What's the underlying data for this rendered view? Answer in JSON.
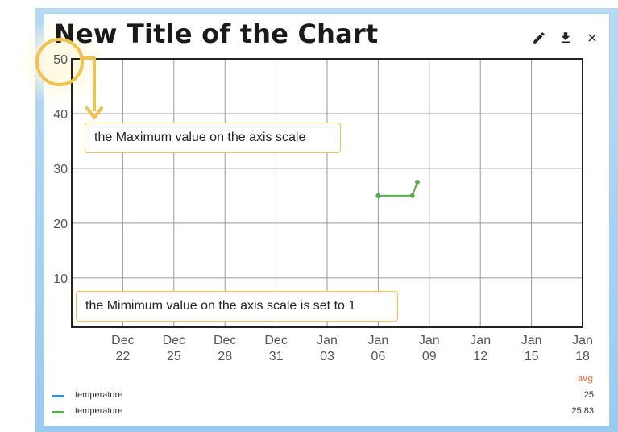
{
  "header": {
    "title": "New Title of the Chart",
    "actions": [
      {
        "icon": "pencil-icon",
        "name": "edit-button"
      },
      {
        "icon": "download-icon",
        "name": "download-button"
      },
      {
        "icon": "close-icon",
        "name": "close-button"
      }
    ]
  },
  "annotations": {
    "max_note": "the Maximum value on the axis scale",
    "min_note": "the Mimimum value on the axis scale is set to 1",
    "accent_color": "#f2c14e"
  },
  "legend": {
    "avg_header": "avg",
    "items": [
      {
        "label": "temperature",
        "color": "#2f8fe0",
        "avg": "25"
      },
      {
        "label": "temperature",
        "color": "#5aab4f",
        "avg": "25.83"
      }
    ]
  },
  "chart_data": {
    "type": "line",
    "x_ticks": [
      {
        "month": "Dec",
        "day": "22",
        "date": "2023-12-22"
      },
      {
        "month": "Dec",
        "day": "25",
        "date": "2023-12-25"
      },
      {
        "month": "Dec",
        "day": "28",
        "date": "2023-12-28"
      },
      {
        "month": "Dec",
        "day": "31",
        "date": "2023-12-31"
      },
      {
        "month": "Jan",
        "day": "03",
        "date": "2024-01-03"
      },
      {
        "month": "Jan",
        "day": "06",
        "date": "2024-01-06"
      },
      {
        "month": "Jan",
        "day": "09",
        "date": "2024-01-09"
      },
      {
        "month": "Jan",
        "day": "12",
        "date": "2024-01-12"
      },
      {
        "month": "Jan",
        "day": "15",
        "date": "2024-01-15"
      },
      {
        "month": "Jan",
        "day": "18",
        "date": "2024-01-18"
      }
    ],
    "xlim": [
      "2023-12-19",
      "2024-01-18"
    ],
    "ylim": [
      1,
      50
    ],
    "y_ticks": [
      10,
      20,
      30,
      40,
      50
    ],
    "grid": true,
    "legend_position": "bottom-left",
    "series": [
      {
        "color": "#2f8fe0",
        "points": [
          {
            "x": "2024-01-06",
            "y": 25
          }
        ]
      },
      {
        "color": "#5aab4f",
        "points": [
          {
            "x": "2024-01-06",
            "y": 25
          },
          {
            "x": "2024-01-08",
            "y": 25
          },
          {
            "x": "2024-01-08.3",
            "y": 27.5
          }
        ]
      }
    ]
  }
}
